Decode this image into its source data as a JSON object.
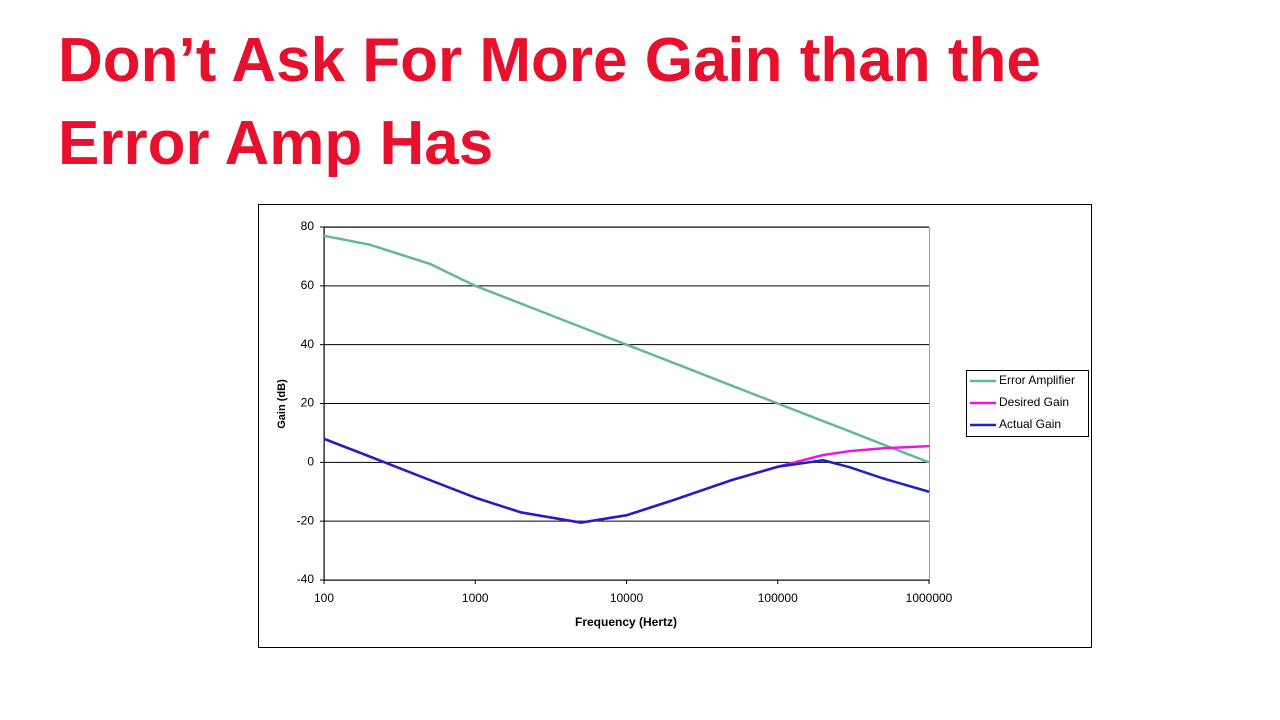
{
  "slide": {
    "title_lines": [
      "Don’t Ask For More Gain than the",
      "Error Amp Has"
    ]
  },
  "chart_data": {
    "type": "line",
    "xlabel": "Frequency (Hertz)",
    "ylabel": "Gain (dB)",
    "xscale": "log",
    "x": [
      100,
      200,
      500,
      1000,
      2000,
      5000,
      10000,
      20000,
      50000,
      100000,
      200000,
      300000,
      500000,
      1000000
    ],
    "xlim": [
      100,
      1000000
    ],
    "xticks": [
      100,
      1000,
      10000,
      100000,
      1000000
    ],
    "ylim": [
      -40,
      80
    ],
    "yticks": [
      -40,
      -20,
      0,
      20,
      40,
      60,
      80
    ],
    "grid": "y",
    "legend": "right",
    "series": [
      {
        "name": "Error Amplifier",
        "color": "#66b79a",
        "values": [
          77,
          74,
          67.5,
          60,
          54,
          46,
          40,
          34,
          26,
          20,
          14,
          10.5,
          6,
          0
        ]
      },
      {
        "name": "Desired Gain",
        "color": "#e619e6",
        "values": [
          8,
          2,
          -6,
          -12,
          -17,
          -20.5,
          -18,
          -13,
          -6,
          -1.5,
          2.5,
          3.8,
          4.8,
          5.5
        ]
      },
      {
        "name": "Actual Gain",
        "color": "#2020c8",
        "values": [
          8,
          2,
          -6,
          -12,
          -17,
          -20.5,
          -18,
          -13,
          -6,
          -1.5,
          0.7,
          -1.7,
          -5.5,
          -10
        ]
      }
    ]
  }
}
